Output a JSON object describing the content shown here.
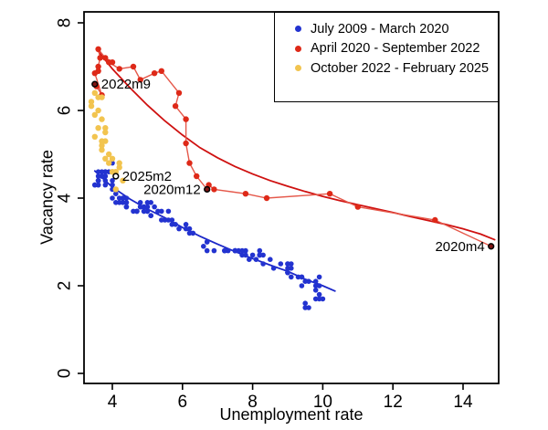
{
  "chart_data": {
    "type": "scatter",
    "title": "",
    "xlabel": "Unemployment rate",
    "ylabel": "Vacancy rate",
    "xlim": [
      3.2,
      15.05
    ],
    "ylim": [
      -0.25,
      8.25
    ],
    "x_ticks": [
      4,
      6,
      8,
      10,
      12,
      14
    ],
    "y_ticks": [
      0,
      2,
      4,
      6,
      8
    ],
    "grid": false,
    "legend_position": "top-right-inside",
    "colors": {
      "blue": "#2333d0",
      "red": "#de2918",
      "yellow": "#f2c44f",
      "blue_fit": "#1b27c8",
      "red_fit": "#cf1110",
      "red_connector": "#e5584a",
      "annotation_fill_dark": "#7e1412",
      "annotation_fill_light": "#ffffff"
    },
    "series": [
      {
        "name": "July 2009 - March 2020",
        "color": "#2333d0",
        "marker_r": 2.8,
        "connected": false,
        "points": [
          [
            9.5,
            1.5
          ],
          [
            9.6,
            1.5
          ],
          [
            9.8,
            1.7
          ],
          [
            10.0,
            1.7
          ],
          [
            9.9,
            1.7
          ],
          [
            9.9,
            1.8
          ],
          [
            9.8,
            2.0
          ],
          [
            9.8,
            1.9
          ],
          [
            9.9,
            2.0
          ],
          [
            9.9,
            2.2
          ],
          [
            9.6,
            2.1
          ],
          [
            9.4,
            2.0
          ],
          [
            9.4,
            2.2
          ],
          [
            9.5,
            2.1
          ],
          [
            9.5,
            1.6
          ],
          [
            9.4,
            2.2
          ],
          [
            9.8,
            2.1
          ],
          [
            9.3,
            2.2
          ],
          [
            9.1,
            2.2
          ],
          [
            9.0,
            2.3
          ],
          [
            9.0,
            2.3
          ],
          [
            9.1,
            2.4
          ],
          [
            9.0,
            2.3
          ],
          [
            9.1,
            2.5
          ],
          [
            9.0,
            2.5
          ],
          [
            9.0,
            2.4
          ],
          [
            9.0,
            2.5
          ],
          [
            8.8,
            2.5
          ],
          [
            8.6,
            2.4
          ],
          [
            8.5,
            2.6
          ],
          [
            8.3,
            2.7
          ],
          [
            8.3,
            2.5
          ],
          [
            8.2,
            2.8
          ],
          [
            8.2,
            2.7
          ],
          [
            8.2,
            2.7
          ],
          [
            8.2,
            2.7
          ],
          [
            8.2,
            2.7
          ],
          [
            8.1,
            2.6
          ],
          [
            7.8,
            2.8
          ],
          [
            7.8,
            2.7
          ],
          [
            7.7,
            2.7
          ],
          [
            7.9,
            2.6
          ],
          [
            8.0,
            2.7
          ],
          [
            7.7,
            2.8
          ],
          [
            7.5,
            2.8
          ],
          [
            7.6,
            2.8
          ],
          [
            7.5,
            2.8
          ],
          [
            7.5,
            2.8
          ],
          [
            7.3,
            2.8
          ],
          [
            7.2,
            2.8
          ],
          [
            7.2,
            2.8
          ],
          [
            7.2,
            2.8
          ],
          [
            6.9,
            2.8
          ],
          [
            6.7,
            2.8
          ],
          [
            6.6,
            2.9
          ],
          [
            6.7,
            3.0
          ],
          [
            6.7,
            3.0
          ],
          [
            6.2,
            3.2
          ],
          [
            6.3,
            3.2
          ],
          [
            6.1,
            3.3
          ],
          [
            6.2,
            3.3
          ],
          [
            6.1,
            3.4
          ],
          [
            5.9,
            3.3
          ],
          [
            5.7,
            3.4
          ],
          [
            5.8,
            3.4
          ],
          [
            5.6,
            3.5
          ],
          [
            5.7,
            3.5
          ],
          [
            5.5,
            3.5
          ],
          [
            5.4,
            3.5
          ],
          [
            5.4,
            3.7
          ],
          [
            5.6,
            3.7
          ],
          [
            5.3,
            3.7
          ],
          [
            5.2,
            3.8
          ],
          [
            5.1,
            3.6
          ],
          [
            5.0,
            3.7
          ],
          [
            5.0,
            3.7
          ],
          [
            5.1,
            3.6
          ],
          [
            5.0,
            3.8
          ],
          [
            4.8,
            3.8
          ],
          [
            4.9,
            3.7
          ],
          [
            5.0,
            3.9
          ],
          [
            5.1,
            3.9
          ],
          [
            4.8,
            3.8
          ],
          [
            4.9,
            3.8
          ],
          [
            4.8,
            3.9
          ],
          [
            4.9,
            3.8
          ],
          [
            5.0,
            3.8
          ],
          [
            4.9,
            3.7
          ],
          [
            4.7,
            3.7
          ],
          [
            4.7,
            3.7
          ],
          [
            4.7,
            3.7
          ],
          [
            4.6,
            3.7
          ],
          [
            4.4,
            3.8
          ],
          [
            4.4,
            3.9
          ],
          [
            4.4,
            3.9
          ],
          [
            4.3,
            3.9
          ],
          [
            4.3,
            4.0
          ],
          [
            4.4,
            4.0
          ],
          [
            4.3,
            4.0
          ],
          [
            4.2,
            4.0
          ],
          [
            4.2,
            3.9
          ],
          [
            4.1,
            3.9
          ],
          [
            4.0,
            4.0
          ],
          [
            4.1,
            4.1
          ],
          [
            4.0,
            4.2
          ],
          [
            4.0,
            4.3
          ],
          [
            3.8,
            4.3
          ],
          [
            4.0,
            4.4
          ],
          [
            3.8,
            4.4
          ],
          [
            3.8,
            4.5
          ],
          [
            3.7,
            4.5
          ],
          [
            3.8,
            4.6
          ],
          [
            3.8,
            4.6
          ],
          [
            3.9,
            4.6
          ],
          [
            4.0,
            4.8
          ],
          [
            3.8,
            4.5
          ],
          [
            3.8,
            4.6
          ],
          [
            3.7,
            4.6
          ],
          [
            3.6,
            4.5
          ],
          [
            3.6,
            4.6
          ],
          [
            3.7,
            4.5
          ],
          [
            3.6,
            4.4
          ],
          [
            3.5,
            4.3
          ],
          [
            3.6,
            4.4
          ],
          [
            3.6,
            4.3
          ],
          [
            3.6,
            4.3
          ],
          [
            3.6,
            4.4
          ],
          [
            3.5,
            4.3
          ],
          [
            4.4,
            3.8
          ]
        ]
      },
      {
        "name": "April 2020 - September 2022",
        "color": "#de2918",
        "marker_r": 3.2,
        "connected": true,
        "line_color": "#e5584a",
        "points": [
          [
            14.8,
            2.9
          ],
          [
            13.2,
            3.5
          ],
          [
            11.0,
            3.8
          ],
          [
            10.2,
            4.1
          ],
          [
            8.4,
            4.0
          ],
          [
            7.8,
            4.1
          ],
          [
            6.9,
            4.2
          ],
          [
            6.75,
            4.3
          ],
          [
            6.7,
            4.2
          ],
          [
            6.4,
            4.5
          ],
          [
            6.2,
            4.8
          ],
          [
            6.1,
            5.25
          ],
          [
            6.1,
            5.8
          ],
          [
            5.8,
            6.1
          ],
          [
            5.9,
            6.4
          ],
          [
            5.4,
            6.9
          ],
          [
            5.2,
            6.85
          ],
          [
            4.8,
            6.7
          ],
          [
            4.6,
            7.0
          ],
          [
            4.2,
            6.95
          ],
          [
            3.9,
            7.1
          ],
          [
            4.0,
            7.1
          ],
          [
            3.8,
            7.2
          ],
          [
            3.6,
            7.4
          ],
          [
            3.65,
            7.2
          ],
          [
            3.6,
            7.0
          ],
          [
            3.6,
            6.9
          ],
          [
            3.5,
            6.85
          ],
          [
            3.7,
            6.35
          ],
          [
            3.55,
            6.55
          ]
        ]
      },
      {
        "name": "October 2022 - February 2025",
        "color": "#f2c44f",
        "marker_r": 3.2,
        "connected": false,
        "points": [
          [
            3.7,
            6.3
          ],
          [
            3.6,
            6.3
          ],
          [
            3.5,
            6.4
          ],
          [
            3.4,
            6.2
          ],
          [
            3.6,
            6.0
          ],
          [
            3.5,
            5.9
          ],
          [
            3.4,
            6.1
          ],
          [
            3.7,
            5.8
          ],
          [
            3.6,
            5.6
          ],
          [
            3.5,
            5.4
          ],
          [
            3.8,
            5.6
          ],
          [
            3.8,
            5.5
          ],
          [
            3.8,
            5.3
          ],
          [
            3.7,
            5.3
          ],
          [
            3.7,
            5.2
          ],
          [
            3.7,
            5.1
          ],
          [
            3.9,
            5.0
          ],
          [
            3.8,
            4.9
          ],
          [
            3.9,
            4.8
          ],
          [
            4.0,
            4.9
          ],
          [
            4.1,
            4.6
          ],
          [
            4.3,
            4.4
          ],
          [
            4.2,
            4.7
          ],
          [
            4.1,
            4.2
          ],
          [
            4.1,
            4.5
          ],
          [
            4.2,
            4.8
          ],
          [
            4.1,
            4.5
          ],
          [
            4.0,
            4.6
          ],
          [
            4.1,
            4.5
          ]
        ]
      }
    ],
    "fit_lines": [
      {
        "name": "blue-fit",
        "color": "#1b27c8",
        "points": [
          [
            3.5,
            4.62
          ],
          [
            4.0,
            4.25
          ],
          [
            4.5,
            3.98
          ],
          [
            5.0,
            3.75
          ],
          [
            5.5,
            3.55
          ],
          [
            6.0,
            3.33
          ],
          [
            6.5,
            3.13
          ],
          [
            7.0,
            2.95
          ],
          [
            7.5,
            2.78
          ],
          [
            8.0,
            2.62
          ],
          [
            8.5,
            2.47
          ],
          [
            9.0,
            2.33
          ],
          [
            9.5,
            2.15
          ],
          [
            10.0,
            2.0
          ],
          [
            10.35,
            1.88
          ]
        ]
      },
      {
        "name": "red-fit",
        "color": "#cf1110",
        "points": [
          [
            3.6,
            7.35
          ],
          [
            4.0,
            6.95
          ],
          [
            4.5,
            6.52
          ],
          [
            5.0,
            6.12
          ],
          [
            5.5,
            5.76
          ],
          [
            6.0,
            5.44
          ],
          [
            6.5,
            5.15
          ],
          [
            7.0,
            4.92
          ],
          [
            7.5,
            4.72
          ],
          [
            8.0,
            4.55
          ],
          [
            8.5,
            4.4
          ],
          [
            9.0,
            4.27
          ],
          [
            9.5,
            4.15
          ],
          [
            10.0,
            4.04
          ],
          [
            10.5,
            3.94
          ],
          [
            11.0,
            3.85
          ],
          [
            11.5,
            3.76
          ],
          [
            12.0,
            3.67
          ],
          [
            12.5,
            3.58
          ],
          [
            13.0,
            3.49
          ],
          [
            13.5,
            3.4
          ],
          [
            14.0,
            3.3
          ],
          [
            14.5,
            3.18
          ],
          [
            14.9,
            3.05
          ]
        ]
      }
    ],
    "annotations": [
      {
        "text": "2022m9",
        "u": 3.5,
        "v": 6.6,
        "side": "right",
        "fill": "#7e1412"
      },
      {
        "text": "2025m2",
        "u": 4.1,
        "v": 4.5,
        "side": "right",
        "fill": "#ffffff"
      },
      {
        "text": "2020m12",
        "u": 6.7,
        "v": 4.2,
        "side": "left",
        "fill": "#7e1412"
      },
      {
        "text": "2020m4",
        "u": 14.8,
        "v": 2.9,
        "side": "left",
        "fill": "#7e1412"
      }
    ]
  }
}
